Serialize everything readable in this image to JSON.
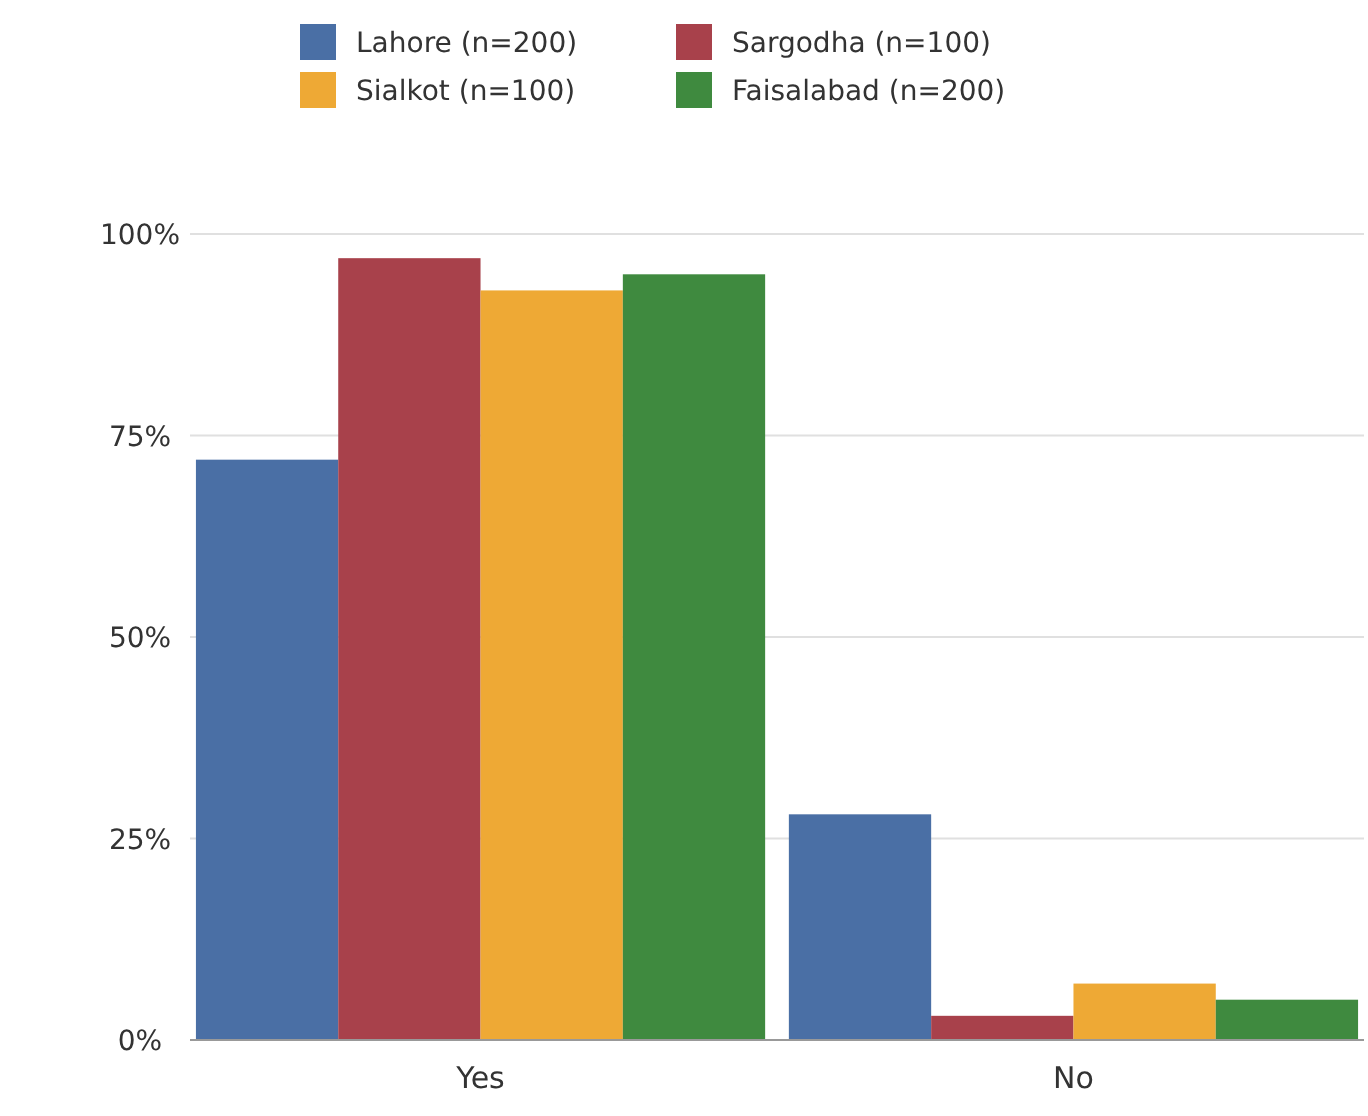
{
  "chart_data": {
    "type": "bar",
    "categories": [
      "Yes",
      "No"
    ],
    "series": [
      {
        "name": "Lahore (n=200)",
        "color": "#4a6fa5",
        "values": [
          72,
          28
        ]
      },
      {
        "name": "Sargodha (n=100)",
        "color": "#a8414b",
        "values": [
          97,
          3
        ]
      },
      {
        "name": "Sialkot (n=100)",
        "color": "#eea935",
        "values": [
          93,
          7
        ]
      },
      {
        "name": "Faisalabad (n=200)",
        "color": "#3f8a3f",
        "values": [
          95,
          5
        ]
      }
    ],
    "ylim": [
      0,
      100
    ],
    "yticks": [
      {
        "value": 0,
        "label": "0%"
      },
      {
        "value": 25,
        "label": "25%"
      },
      {
        "value": 50,
        "label": "50%"
      },
      {
        "value": 75,
        "label": "75%"
      },
      {
        "value": 100,
        "label": "100%"
      }
    ],
    "grid": "y",
    "legend": "top"
  }
}
